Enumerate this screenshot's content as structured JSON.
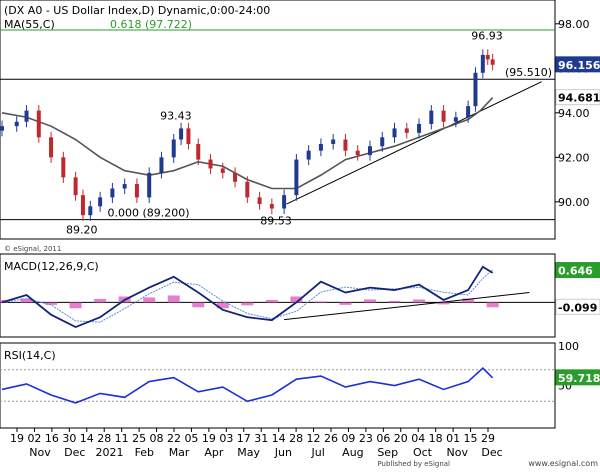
{
  "chart_data": [
    {
      "type": "candlestick",
      "title": "(DX A0 - US Dollar Index,D) Dynamic,0:00-24:00",
      "ma_label": "MA(55,C)",
      "watermark": "© eSignal, 2011",
      "ylim": [
        88.6,
        98.8
      ],
      "y_ticks": [
        98,
        96,
        94,
        92,
        90
      ],
      "y_tick_labels": [
        "98.00",
        "96.00",
        "94.00",
        "92.00",
        "90.00"
      ],
      "price_badges": [
        {
          "value": 96.156,
          "label": "96.156",
          "style": "dark"
        },
        {
          "value": 94.681,
          "label": "94.681",
          "style": "light"
        }
      ],
      "fib_level": {
        "value": 97.722,
        "label": "0.618 (97.722)",
        "color": "#2a9d2a"
      },
      "horizontal_line": {
        "value": 95.51,
        "label": "(95.510)"
      },
      "fib_zero": {
        "value": 89.2,
        "label": "0.000 (89.200)"
      },
      "annotations": [
        {
          "text": "96.93",
          "x": 19.7,
          "y": 96.93
        },
        {
          "text": "93.43",
          "x": 7.1,
          "y": 93.43
        },
        {
          "text": "89.20",
          "x": 3.1,
          "y": 89.2
        },
        {
          "text": "89.53",
          "x": 11.1,
          "y": 89.53
        }
      ],
      "trendline": {
        "x": [
          11.6,
          22.0
        ],
        "y": [
          89.9,
          95.4
        ]
      },
      "close": [
        {
          "x": 0.0,
          "y": 93.4
        },
        {
          "x": 0.6,
          "y": 93.6
        },
        {
          "x": 1.0,
          "y": 94.1
        },
        {
          "x": 1.5,
          "y": 92.9
        },
        {
          "x": 2.0,
          "y": 92.0
        },
        {
          "x": 2.5,
          "y": 91.1
        },
        {
          "x": 3.0,
          "y": 90.3
        },
        {
          "x": 3.3,
          "y": 89.4
        },
        {
          "x": 3.6,
          "y": 89.8
        },
        {
          "x": 4.0,
          "y": 90.2
        },
        {
          "x": 4.5,
          "y": 90.6
        },
        {
          "x": 5.0,
          "y": 90.8
        },
        {
          "x": 5.5,
          "y": 90.2
        },
        {
          "x": 6.0,
          "y": 91.3
        },
        {
          "x": 6.5,
          "y": 92.0
        },
        {
          "x": 7.0,
          "y": 92.8
        },
        {
          "x": 7.3,
          "y": 93.3
        },
        {
          "x": 7.6,
          "y": 92.6
        },
        {
          "x": 8.0,
          "y": 91.9
        },
        {
          "x": 8.5,
          "y": 91.5
        },
        {
          "x": 9.0,
          "y": 91.3
        },
        {
          "x": 9.5,
          "y": 90.9
        },
        {
          "x": 10.0,
          "y": 90.2
        },
        {
          "x": 10.5,
          "y": 89.9
        },
        {
          "x": 11.0,
          "y": 89.7
        },
        {
          "x": 11.5,
          "y": 90.3
        },
        {
          "x": 12.0,
          "y": 91.9
        },
        {
          "x": 12.5,
          "y": 92.3
        },
        {
          "x": 13.0,
          "y": 92.6
        },
        {
          "x": 13.5,
          "y": 92.8
        },
        {
          "x": 14.0,
          "y": 92.3
        },
        {
          "x": 14.5,
          "y": 92.1
        },
        {
          "x": 15.0,
          "y": 92.5
        },
        {
          "x": 15.5,
          "y": 92.9
        },
        {
          "x": 16.0,
          "y": 93.3
        },
        {
          "x": 16.5,
          "y": 93.1
        },
        {
          "x": 17.0,
          "y": 93.5
        },
        {
          "x": 17.5,
          "y": 94.1
        },
        {
          "x": 18.0,
          "y": 93.6
        },
        {
          "x": 18.5,
          "y": 93.8
        },
        {
          "x": 19.0,
          "y": 94.3
        },
        {
          "x": 19.3,
          "y": 95.8
        },
        {
          "x": 19.6,
          "y": 96.6
        },
        {
          "x": 19.8,
          "y": 96.4
        },
        {
          "x": 20.0,
          "y": 96.16
        }
      ],
      "ma55": [
        {
          "x": 0.0,
          "y": 94.0
        },
        {
          "x": 1.0,
          "y": 93.8
        },
        {
          "x": 2.0,
          "y": 93.4
        },
        {
          "x": 3.0,
          "y": 92.8
        },
        {
          "x": 4.0,
          "y": 92.0
        },
        {
          "x": 5.0,
          "y": 91.4
        },
        {
          "x": 6.0,
          "y": 91.2
        },
        {
          "x": 7.0,
          "y": 91.4
        },
        {
          "x": 8.0,
          "y": 91.8
        },
        {
          "x": 9.0,
          "y": 91.6
        },
        {
          "x": 10.0,
          "y": 91.0
        },
        {
          "x": 11.0,
          "y": 90.6
        },
        {
          "x": 12.0,
          "y": 90.6
        },
        {
          "x": 13.0,
          "y": 91.2
        },
        {
          "x": 14.0,
          "y": 91.9
        },
        {
          "x": 15.0,
          "y": 92.2
        },
        {
          "x": 16.0,
          "y": 92.5
        },
        {
          "x": 17.0,
          "y": 92.9
        },
        {
          "x": 18.0,
          "y": 93.3
        },
        {
          "x": 19.0,
          "y": 93.7
        },
        {
          "x": 19.5,
          "y": 94.1
        },
        {
          "x": 20.0,
          "y": 94.68
        }
      ]
    },
    {
      "type": "line",
      "title": "MACD(12,26,9,C)",
      "ylim": [
        -0.6,
        0.9
      ],
      "price_badges": [
        {
          "value": 0.646,
          "label": "0.646",
          "style": "green"
        },
        {
          "value": -0.099,
          "label": "-0.099",
          "style": "light"
        }
      ],
      "histogram": [
        {
          "x": 0.0,
          "y": 0.05
        },
        {
          "x": 1.0,
          "y": 0.08
        },
        {
          "x": 2.0,
          "y": -0.05
        },
        {
          "x": 3.0,
          "y": -0.12
        },
        {
          "x": 4.0,
          "y": 0.07
        },
        {
          "x": 5.0,
          "y": 0.12
        },
        {
          "x": 6.0,
          "y": 0.1
        },
        {
          "x": 7.0,
          "y": 0.14
        },
        {
          "x": 8.0,
          "y": -0.1
        },
        {
          "x": 9.0,
          "y": -0.12
        },
        {
          "x": 10.0,
          "y": -0.06
        },
        {
          "x": 11.0,
          "y": 0.05
        },
        {
          "x": 12.0,
          "y": 0.12
        },
        {
          "x": 13.0,
          "y": 0.02
        },
        {
          "x": 14.0,
          "y": -0.05
        },
        {
          "x": 15.0,
          "y": 0.06
        },
        {
          "x": 16.0,
          "y": 0.03
        },
        {
          "x": 17.0,
          "y": 0.06
        },
        {
          "x": 18.0,
          "y": -0.04
        },
        {
          "x": 19.0,
          "y": 0.08
        },
        {
          "x": 20.0,
          "y": -0.1
        }
      ],
      "trendline": {
        "x": [
          11.5,
          21.5
        ],
        "y": [
          -0.35,
          0.2
        ]
      },
      "series": [
        {
          "name": "MACD",
          "points": [
            {
              "x": 0.0,
              "y": 0.0
            },
            {
              "x": 1.0,
              "y": 0.15
            },
            {
              "x": 2.0,
              "y": -0.25
            },
            {
              "x": 3.0,
              "y": -0.5
            },
            {
              "x": 4.0,
              "y": -0.3
            },
            {
              "x": 5.0,
              "y": 0.05
            },
            {
              "x": 6.0,
              "y": 0.3
            },
            {
              "x": 7.0,
              "y": 0.52
            },
            {
              "x": 8.0,
              "y": 0.2
            },
            {
              "x": 9.0,
              "y": -0.15
            },
            {
              "x": 10.0,
              "y": -0.3
            },
            {
              "x": 11.0,
              "y": -0.36
            },
            {
              "x": 12.0,
              "y": 0.0
            },
            {
              "x": 13.0,
              "y": 0.42
            },
            {
              "x": 14.0,
              "y": 0.2
            },
            {
              "x": 15.0,
              "y": 0.3
            },
            {
              "x": 16.0,
              "y": 0.25
            },
            {
              "x": 17.0,
              "y": 0.36
            },
            {
              "x": 18.0,
              "y": 0.05
            },
            {
              "x": 19.0,
              "y": 0.25
            },
            {
              "x": 19.6,
              "y": 0.72
            },
            {
              "x": 20.0,
              "y": 0.6
            }
          ]
        }
      ]
    },
    {
      "type": "line",
      "title": "RSI(14,C)",
      "ylim": [
        0,
        100
      ],
      "y_ticks": [
        100,
        50
      ],
      "y_tick_labels": [
        "100",
        "50"
      ],
      "price_badges": [
        {
          "value": 59.718,
          "label": "59.718",
          "style": "green"
        }
      ],
      "x_tick_labels": [
        "19",
        "02",
        "16",
        "30",
        "14",
        "28",
        "11",
        "25",
        "08",
        "22",
        "05",
        "19",
        "03",
        "17",
        "31",
        "14",
        "28",
        "12",
        "26",
        "09",
        "23",
        "06",
        "20",
        "04",
        "18",
        "01",
        "15",
        "29"
      ],
      "x_month_labels": [
        "Nov",
        "Dec",
        "2021",
        "Feb",
        "Mar",
        "Apr",
        "May",
        "Jun",
        "Jul",
        "Aug",
        "Sep",
        "Oct",
        "Nov",
        "Dec"
      ],
      "series": [
        {
          "name": "RSI",
          "points": [
            {
              "x": 0.0,
              "y": 45
            },
            {
              "x": 1.0,
              "y": 52
            },
            {
              "x": 2.0,
              "y": 38
            },
            {
              "x": 3.0,
              "y": 28
            },
            {
              "x": 4.0,
              "y": 40
            },
            {
              "x": 5.0,
              "y": 35
            },
            {
              "x": 6.0,
              "y": 55
            },
            {
              "x": 7.0,
              "y": 60
            },
            {
              "x": 8.0,
              "y": 42
            },
            {
              "x": 9.0,
              "y": 48
            },
            {
              "x": 10.0,
              "y": 30
            },
            {
              "x": 11.0,
              "y": 38
            },
            {
              "x": 12.0,
              "y": 58
            },
            {
              "x": 13.0,
              "y": 62
            },
            {
              "x": 14.0,
              "y": 48
            },
            {
              "x": 15.0,
              "y": 55
            },
            {
              "x": 16.0,
              "y": 50
            },
            {
              "x": 17.0,
              "y": 58
            },
            {
              "x": 18.0,
              "y": 45
            },
            {
              "x": 19.0,
              "y": 55
            },
            {
              "x": 19.6,
              "y": 72
            },
            {
              "x": 20.0,
              "y": 59.7
            }
          ]
        }
      ]
    }
  ],
  "footer": {
    "publisher": "Published by eSignal",
    "website": "www.esignal.com"
  }
}
